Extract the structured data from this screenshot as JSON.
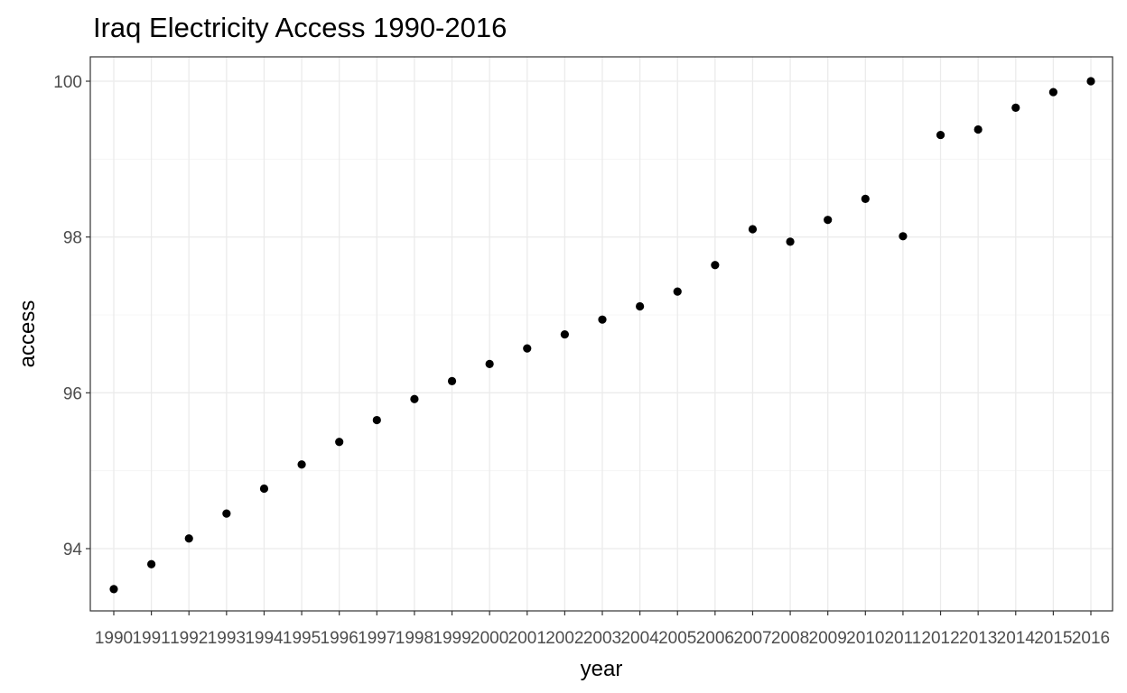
{
  "chart_data": {
    "type": "scatter",
    "title": "Iraq Electricity Access 1990-2016",
    "xlabel": "year",
    "ylabel": "access",
    "x": [
      "1990",
      "1991",
      "1992",
      "1993",
      "1994",
      "1995",
      "1996",
      "1997",
      "1998",
      "1999",
      "2000",
      "2001",
      "2002",
      "2003",
      "2004",
      "2005",
      "2006",
      "2007",
      "2008",
      "2009",
      "2010",
      "2011",
      "2012",
      "2013",
      "2014",
      "2015",
      "2016"
    ],
    "y": [
      93.48,
      93.8,
      94.13,
      94.45,
      94.77,
      95.08,
      95.37,
      95.65,
      95.92,
      96.15,
      96.37,
      96.57,
      96.75,
      96.94,
      97.11,
      97.3,
      97.64,
      98.1,
      97.94,
      98.22,
      98.49,
      98.01,
      99.31,
      99.38,
      99.66,
      99.86,
      100.0
    ],
    "ylim": [
      93.2,
      100.3
    ],
    "yticks": [
      94,
      96,
      98,
      100
    ],
    "grid": true,
    "legend": "none",
    "point_color": "#000000"
  }
}
